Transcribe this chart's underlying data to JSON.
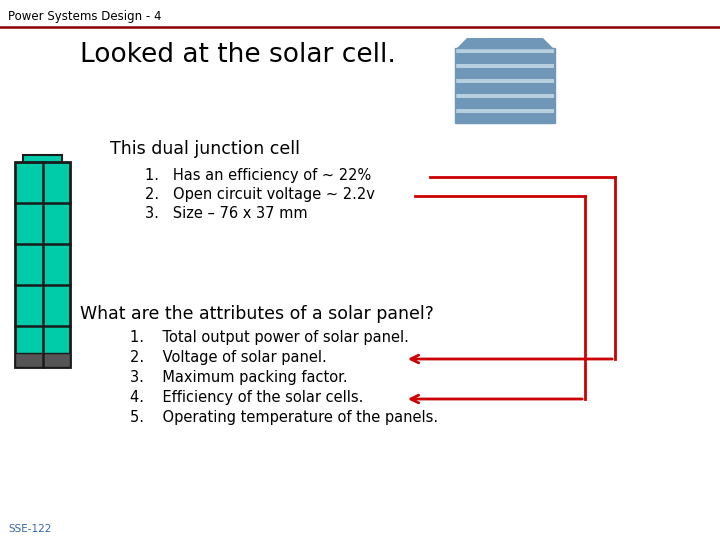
{
  "title": "Power Systems Design - 4",
  "heading1": "Looked at the solar cell.",
  "heading2": "This dual junction cell",
  "list1": [
    "Has an efficiency of ~ 22%",
    "Open circuit voltage ~ 2.2v",
    "Size – 76 x 37 mm"
  ],
  "heading3": "What are the attributes of a solar panel?",
  "list2": [
    "Total output power of solar panel.",
    "Voltage of solar panel.",
    "Maximum packing factor.",
    "Efficiency of the solar cells.",
    "Operating temperature of the panels."
  ],
  "footer": "SSE-122",
  "bg_color": "#ffffff",
  "title_color": "#000000",
  "header_line_color": "#8b0000",
  "text_color": "#000000",
  "arrow_color": "#cc0000",
  "solar_panel_blue": "#7097b8",
  "solar_panel_stripe": "#b8cfe0",
  "cell_green": "#00ccaa",
  "cell_border": "#1a1a1a",
  "footer_color": "#3366aa"
}
